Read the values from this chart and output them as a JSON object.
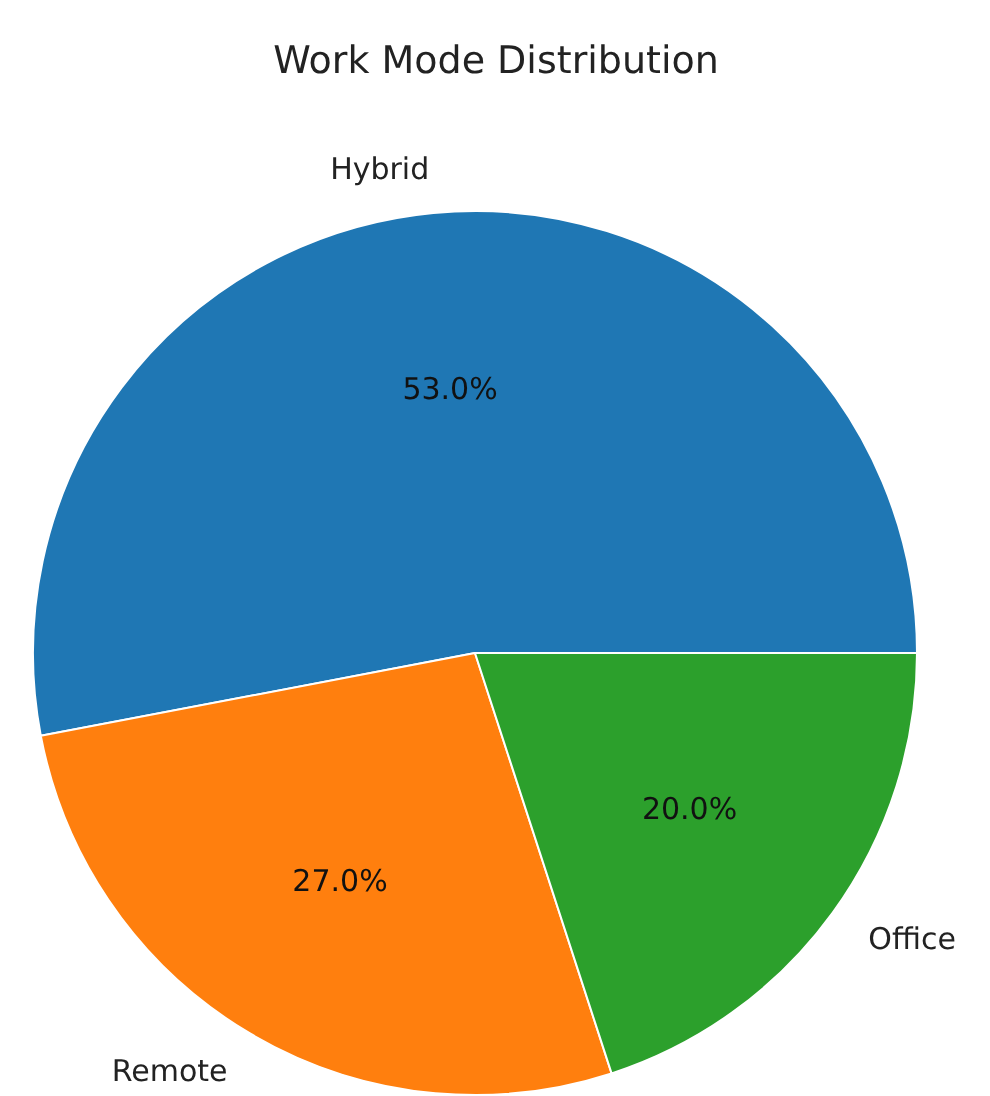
{
  "chart_data": {
    "type": "pie",
    "title": "Work Mode Distribution",
    "categories": [
      "Hybrid",
      "Remote",
      "Office"
    ],
    "values": [
      53.0,
      27.0,
      20.0
    ],
    "colors": [
      "#1f77b4",
      "#ff7f0e",
      "#2ca02c"
    ],
    "value_labels": [
      "53.0%",
      "27.0%",
      "20.0%"
    ]
  }
}
